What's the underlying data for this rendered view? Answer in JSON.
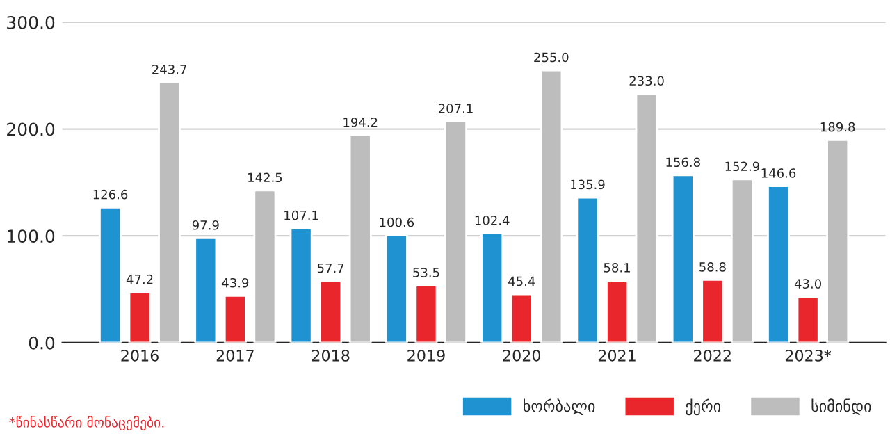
{
  "chart_data": {
    "type": "bar",
    "categories": [
      "2016",
      "2017",
      "2018",
      "2019",
      "2020",
      "2021",
      "2022",
      "2023*"
    ],
    "series": [
      {
        "name": "ხორბალი",
        "color": "#1f93d1",
        "values": [
          126.6,
          97.9,
          107.1,
          100.6,
          102.4,
          135.9,
          156.8,
          146.6
        ],
        "value_labels": [
          "126.6",
          "97.9",
          "107.1",
          "100.6",
          "102.4",
          "135.9",
          "156.8",
          "146.6"
        ]
      },
      {
        "name": "ქერი",
        "color": "#e8262b",
        "values": [
          47.2,
          43.9,
          57.7,
          53.5,
          45.4,
          58.1,
          58.8,
          43.0
        ],
        "value_labels": [
          "47.2",
          "43.9",
          "57.7",
          "53.5",
          "45.4",
          "58.1",
          "58.8",
          "43.0"
        ]
      },
      {
        "name": "სიმინდი",
        "color": "#bdbdbd",
        "values": [
          243.7,
          142.5,
          194.2,
          207.1,
          255.0,
          233.0,
          152.9,
          189.8
        ],
        "value_labels": [
          "243.7",
          "142.5",
          "194.2",
          "207.1",
          "255.0",
          "233.0",
          "152.9",
          "189.8"
        ]
      }
    ],
    "ylim": [
      0,
      300
    ],
    "yticks": [
      {
        "value": 0,
        "label": "0.0"
      },
      {
        "value": 100,
        "label": "100.0"
      },
      {
        "value": 200,
        "label": "200.0"
      },
      {
        "value": 300,
        "label": "300.0"
      }
    ],
    "grid": "y",
    "legend": "bottom right",
    "annotations": [
      "*წინასწარი მონაცემები."
    ]
  }
}
